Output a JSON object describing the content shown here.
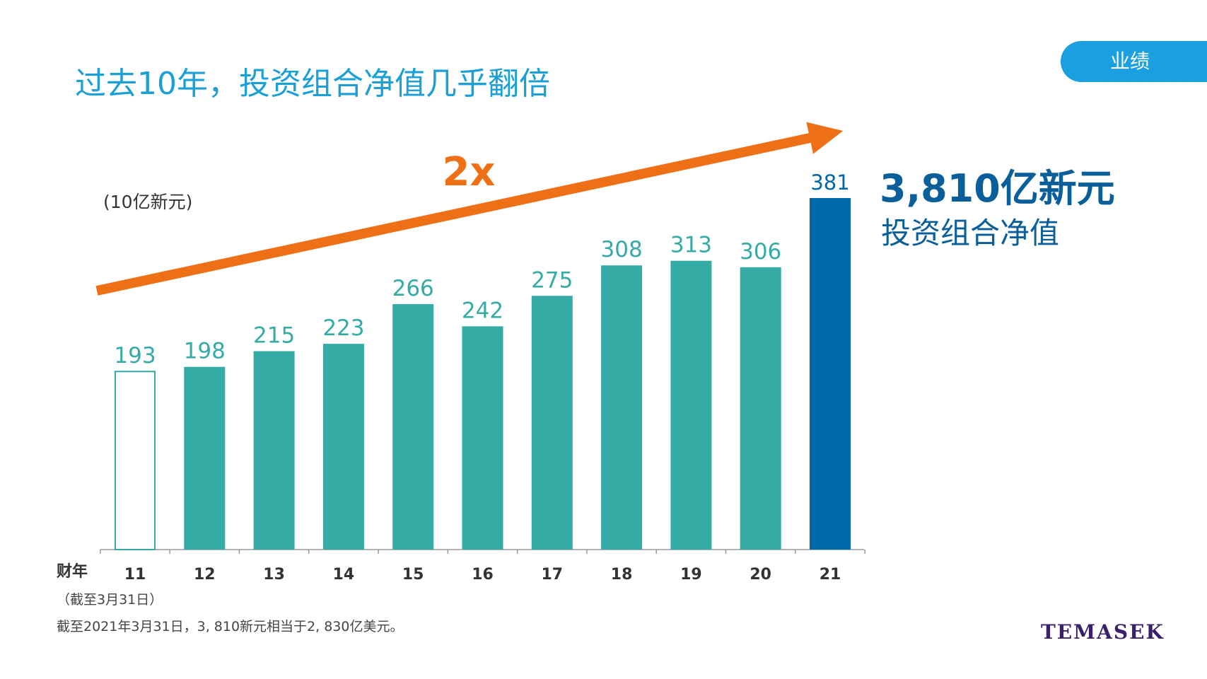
{
  "page": {
    "title": "过去10年，投资组合净值几乎翻倍",
    "section_tag": "业绩",
    "unit_note": "(10亿新元)",
    "headline": {
      "value": "3,810亿新元",
      "label": "投资组合净值"
    },
    "x_axis_title": "财年",
    "x_axis_subtitle": "（截至3月31日）",
    "footnote": "截至2021年3月31日，3, 810新元相当于2, 830亿美元。",
    "logo_text": "TEMASEK"
  },
  "colors": {
    "title": "#1a9fd6",
    "tag_bg": "#1a9fe0",
    "bar_teal": "#35aba6",
    "bar_highlight": "#0068a8",
    "bar_outline": "#35aba6",
    "arrow": "#ee7016",
    "headline": "#0a5e9a",
    "logo": "#3a1f6b"
  },
  "chart_data": {
    "type": "bar",
    "categories": [
      "11",
      "12",
      "13",
      "14",
      "15",
      "16",
      "17",
      "18",
      "19",
      "20",
      "21"
    ],
    "values": [
      193,
      198,
      215,
      223,
      266,
      242,
      275,
      308,
      313,
      306,
      381
    ],
    "styles": [
      "outline",
      "teal",
      "teal",
      "teal",
      "teal",
      "teal",
      "teal",
      "teal",
      "teal",
      "teal",
      "highlight"
    ],
    "data_labels": [
      "193",
      "198",
      "215",
      "223",
      "266",
      "242",
      "275",
      "308",
      "313",
      "306",
      "381"
    ],
    "ylim": [
      0,
      381
    ],
    "annotation": {
      "text": "2x",
      "shape": "arrow rising from bar 11 to bar 21"
    },
    "grid": false
  }
}
